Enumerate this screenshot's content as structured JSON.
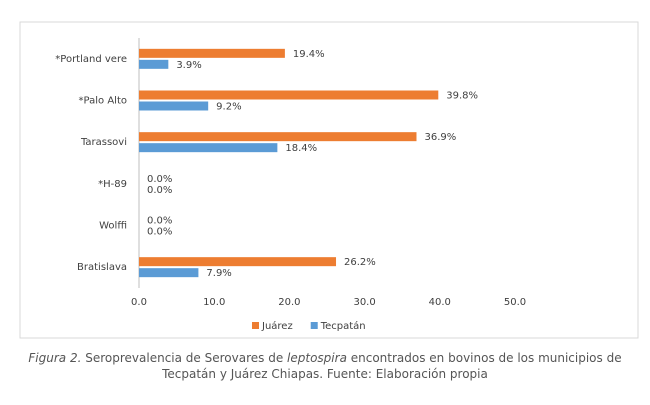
{
  "chart_data": {
    "type": "hbar",
    "categories": [
      "*Portland vere",
      "*Palo Alto",
      "Tarassovi",
      "*H-89",
      "Wolffi",
      "Bratislava"
    ],
    "series": [
      {
        "name": "Juárez",
        "color": "#ed7d31",
        "values": [
          19.4,
          39.8,
          36.9,
          0,
          0,
          26.2
        ],
        "value_labels": [
          "19.4%",
          "39.8%",
          "36.9%",
          "0.0%",
          "0.0%",
          "26.2%"
        ]
      },
      {
        "name": "Tecpatán",
        "color": "#5b9bd5",
        "values": [
          3.9,
          9.2,
          18.4,
          0,
          0,
          7.9
        ],
        "value_labels": [
          "3.9%",
          "9.2%",
          "18.4%",
          "0.0%",
          "0.0%",
          "7.9%"
        ]
      }
    ],
    "xlim": [
      0,
      50
    ],
    "xticks": [
      {
        "value": 0,
        "label": "0.0"
      },
      {
        "value": 10,
        "label": "10.0"
      },
      {
        "value": 20,
        "label": "20.0"
      },
      {
        "value": 30,
        "label": "30.0"
      },
      {
        "value": 40,
        "label": "40.0"
      },
      {
        "value": 50,
        "label": "50.0"
      }
    ],
    "grid": false,
    "legend": "bottom"
  },
  "caption": {
    "label": "Figura 2.",
    "text_before": "Seroprevalencia de Serovares de",
    "italic": "leptospira",
    "text_after": "encontrados en bovinos de los municipios de Tecpatán y Juárez Chiapas. Fuente: Elaboración propia"
  }
}
